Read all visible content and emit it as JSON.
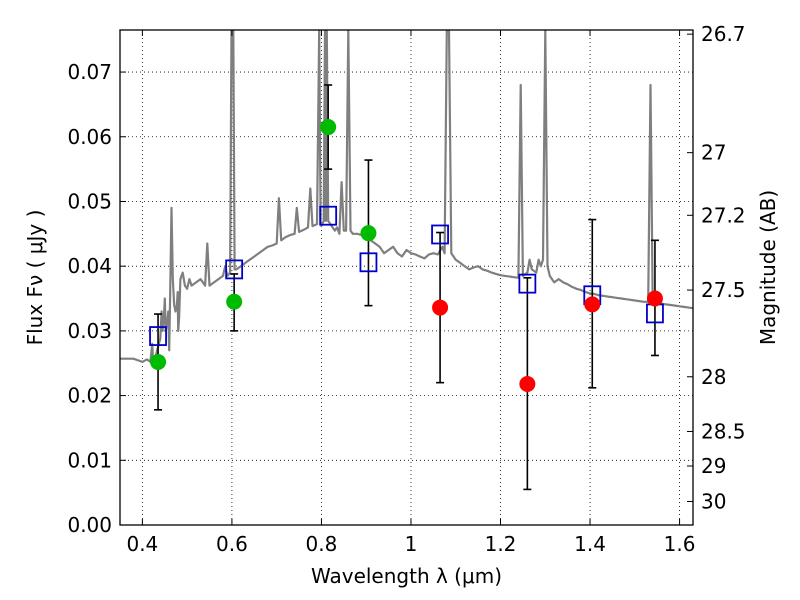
{
  "chart_data": {
    "type": "scatter",
    "xlabel": "Wavelength  λ (μm)",
    "ylabel": "Flux  Fν  ( μJy )",
    "ylabel_right": "Magnitude (AB)",
    "xlim": [
      0.35,
      1.63
    ],
    "ylim": [
      0.0,
      0.0765
    ],
    "grid": true,
    "x_ticks": [
      "0.4",
      "0.6",
      "0.8",
      "1",
      "1.2",
      "1.4",
      "1.6"
    ],
    "y_ticks": [
      "0.00",
      "0.01",
      "0.02",
      "0.03",
      "0.04",
      "0.05",
      "0.06",
      "0.07"
    ],
    "right_ticks": [
      "26.7",
      "27",
      "27.2",
      "27.5",
      "28",
      "28.5",
      "29",
      "30"
    ],
    "colors": {
      "spectrum": "#7f7f7f",
      "model_squares": "#0000cc",
      "green_points": "#00bb00",
      "red_points": "#ff0000",
      "errorbars": "#000000"
    },
    "series": [
      {
        "marker": "open-square",
        "color": "#0000cc",
        "x": [
          0.435,
          0.605,
          0.815,
          0.905,
          1.065,
          1.26,
          1.405,
          1.545
        ],
        "y": [
          0.0292,
          0.0395,
          0.0478,
          0.0406,
          0.0449,
          0.0373,
          0.0355,
          0.0327
        ]
      },
      {
        "marker": "circle",
        "color": "#00bb00",
        "x": [
          0.435,
          0.605,
          0.815,
          0.905
        ],
        "y": [
          0.0252,
          0.0345,
          0.0615,
          0.0451
        ],
        "yerr_low": [
          0.0178,
          0.03,
          0.055,
          0.0339
        ],
        "yerr_high": [
          0.0326,
          0.0388,
          0.068,
          0.0564
        ]
      },
      {
        "marker": "circle",
        "color": "#ff0000",
        "x": [
          1.065,
          1.26,
          1.405,
          1.545
        ],
        "y": [
          0.0336,
          0.0218,
          0.0341,
          0.035
        ],
        "yerr_low": [
          0.022,
          0.0055,
          0.0212,
          0.0262
        ],
        "yerr_high": [
          0.0452,
          0.0382,
          0.0472,
          0.044
        ]
      },
      {
        "marker": "line",
        "color": "#7f7f7f",
        "points": [
          [
            0.35,
            0.0257
          ],
          [
            0.38,
            0.0257
          ],
          [
            0.4,
            0.0252
          ],
          [
            0.41,
            0.0256
          ],
          [
            0.418,
            0.0252
          ],
          [
            0.422,
            0.028
          ],
          [
            0.424,
            0.0255
          ],
          [
            0.43,
            0.0262
          ],
          [
            0.436,
            0.0278
          ],
          [
            0.44,
            0.0288
          ],
          [
            0.443,
            0.033
          ],
          [
            0.445,
            0.03
          ],
          [
            0.448,
            0.032
          ],
          [
            0.45,
            0.035
          ],
          [
            0.452,
            0.03
          ],
          [
            0.455,
            0.031
          ],
          [
            0.458,
            0.033
          ],
          [
            0.46,
            0.027
          ],
          [
            0.462,
            0.035
          ],
          [
            0.465,
            0.049
          ],
          [
            0.468,
            0.038
          ],
          [
            0.471,
            0.034
          ],
          [
            0.474,
            0.033
          ],
          [
            0.477,
            0.034
          ],
          [
            0.479,
            0.036
          ],
          [
            0.48,
            0.03
          ],
          [
            0.482,
            0.032
          ],
          [
            0.485,
            0.038
          ],
          [
            0.49,
            0.039
          ],
          [
            0.495,
            0.037
          ],
          [
            0.5,
            0.0365
          ],
          [
            0.505,
            0.038
          ],
          [
            0.51,
            0.037
          ],
          [
            0.52,
            0.0375
          ],
          [
            0.53,
            0.038
          ],
          [
            0.54,
            0.037
          ],
          [
            0.545,
            0.0435
          ],
          [
            0.55,
            0.037
          ],
          [
            0.56,
            0.0375
          ],
          [
            0.57,
            0.038
          ],
          [
            0.58,
            0.0385
          ],
          [
            0.585,
            0.04
          ],
          [
            0.59,
            0.0385
          ],
          [
            0.596,
            0.039
          ],
          [
            0.599,
            0.0765
          ],
          [
            0.603,
            0.0765
          ],
          [
            0.606,
            0.0395
          ],
          [
            0.61,
            0.0395
          ],
          [
            0.62,
            0.04
          ],
          [
            0.63,
            0.0405
          ],
          [
            0.64,
            0.041
          ],
          [
            0.65,
            0.0415
          ],
          [
            0.66,
            0.042
          ],
          [
            0.67,
            0.0425
          ],
          [
            0.68,
            0.043
          ],
          [
            0.69,
            0.0432
          ],
          [
            0.7,
            0.0435
          ],
          [
            0.705,
            0.0505
          ],
          [
            0.71,
            0.044
          ],
          [
            0.72,
            0.0445
          ],
          [
            0.73,
            0.0448
          ],
          [
            0.74,
            0.045
          ],
          [
            0.745,
            0.049
          ],
          [
            0.75,
            0.0453
          ],
          [
            0.76,
            0.0456
          ],
          [
            0.77,
            0.046
          ],
          [
            0.775,
            0.052
          ],
          [
            0.78,
            0.0462
          ],
          [
            0.79,
            0.0465
          ],
          [
            0.795,
            0.0765
          ],
          [
            0.798,
            0.047
          ],
          [
            0.8,
            0.0462
          ],
          [
            0.805,
            0.047
          ],
          [
            0.808,
            0.0765
          ],
          [
            0.81,
            0.047
          ],
          [
            0.812,
            0.0765
          ],
          [
            0.815,
            0.047
          ],
          [
            0.82,
            0.0465
          ],
          [
            0.825,
            0.046
          ],
          [
            0.83,
            0.0455
          ],
          [
            0.835,
            0.046
          ],
          [
            0.84,
            0.045
          ],
          [
            0.845,
            0.053
          ],
          [
            0.85,
            0.0455
          ],
          [
            0.855,
            0.0455
          ],
          [
            0.86,
            0.0765
          ],
          [
            0.865,
            0.0455
          ],
          [
            0.87,
            0.045
          ],
          [
            0.88,
            0.045
          ],
          [
            0.89,
            0.0448
          ],
          [
            0.9,
            0.0445
          ],
          [
            0.91,
            0.044
          ],
          [
            0.92,
            0.0435
          ],
          [
            0.93,
            0.043
          ],
          [
            0.94,
            0.042
          ],
          [
            0.95,
            0.0425
          ],
          [
            0.96,
            0.043
          ],
          [
            0.97,
            0.042
          ],
          [
            0.98,
            0.0415
          ],
          [
            0.99,
            0.0425
          ],
          [
            1.0,
            0.042
          ],
          [
            1.01,
            0.0418
          ],
          [
            1.02,
            0.0415
          ],
          [
            1.03,
            0.0412
          ],
          [
            1.04,
            0.0418
          ],
          [
            1.05,
            0.042
          ],
          [
            1.06,
            0.0418
          ],
          [
            1.07,
            0.043
          ],
          [
            1.075,
            0.042
          ],
          [
            1.08,
            0.0765
          ],
          [
            1.085,
            0.0765
          ],
          [
            1.09,
            0.042
          ],
          [
            1.1,
            0.041
          ],
          [
            1.11,
            0.0405
          ],
          [
            1.12,
            0.04
          ],
          [
            1.13,
            0.0395
          ],
          [
            1.14,
            0.0398
          ],
          [
            1.15,
            0.04
          ],
          [
            1.16,
            0.0395
          ],
          [
            1.17,
            0.0393
          ],
          [
            1.18,
            0.039
          ],
          [
            1.19,
            0.0388
          ],
          [
            1.2,
            0.0386
          ],
          [
            1.21,
            0.0385
          ],
          [
            1.22,
            0.0384
          ],
          [
            1.23,
            0.0383
          ],
          [
            1.24,
            0.0382
          ],
          [
            1.245,
            0.068
          ],
          [
            1.25,
            0.0385
          ],
          [
            1.26,
            0.039
          ],
          [
            1.265,
            0.041
          ],
          [
            1.27,
            0.0395
          ],
          [
            1.28,
            0.039
          ],
          [
            1.285,
            0.041
          ],
          [
            1.29,
            0.04
          ],
          [
            1.295,
            0.041
          ],
          [
            1.3,
            0.0765
          ],
          [
            1.305,
            0.04
          ],
          [
            1.31,
            0.0385
          ],
          [
            1.32,
            0.0375
          ],
          [
            1.33,
            0.038
          ],
          [
            1.34,
            0.0375
          ],
          [
            1.35,
            0.0372
          ],
          [
            1.36,
            0.0368
          ],
          [
            1.37,
            0.0365
          ],
          [
            1.38,
            0.0363
          ],
          [
            1.39,
            0.036
          ],
          [
            1.4,
            0.0358
          ],
          [
            1.41,
            0.0357
          ],
          [
            1.42,
            0.0355
          ],
          [
            1.43,
            0.0354
          ],
          [
            1.44,
            0.0353
          ],
          [
            1.45,
            0.0352
          ],
          [
            1.46,
            0.0351
          ],
          [
            1.47,
            0.035
          ],
          [
            1.48,
            0.0349
          ],
          [
            1.49,
            0.0348
          ],
          [
            1.5,
            0.0347
          ],
          [
            1.51,
            0.0346
          ],
          [
            1.52,
            0.0345
          ],
          [
            1.53,
            0.0345
          ],
          [
            1.535,
            0.068
          ],
          [
            1.54,
            0.0345
          ],
          [
            1.55,
            0.0343
          ],
          [
            1.56,
            0.0342
          ],
          [
            1.57,
            0.0341
          ],
          [
            1.58,
            0.034
          ],
          [
            1.59,
            0.0339
          ],
          [
            1.6,
            0.0338
          ],
          [
            1.61,
            0.0337
          ],
          [
            1.62,
            0.0336
          ],
          [
            1.63,
            0.0335
          ]
        ]
      }
    ]
  }
}
